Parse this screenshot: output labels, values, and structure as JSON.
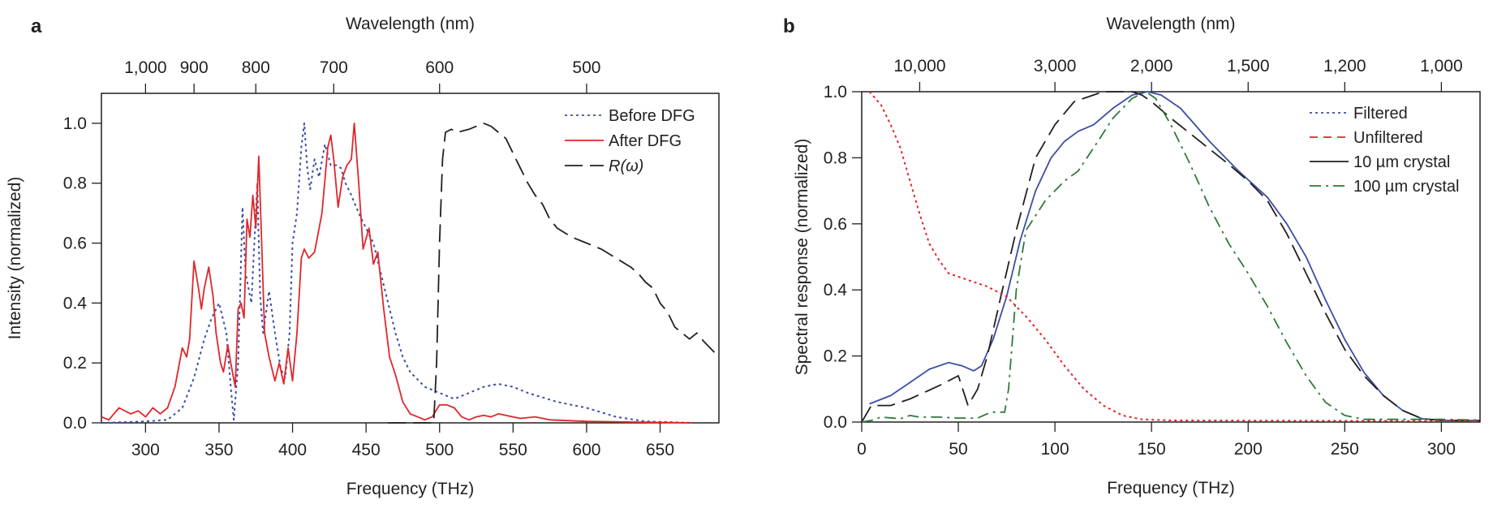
{
  "chart_data": [
    {
      "panel": "a",
      "type": "line",
      "xlabel": "Frequency (THz)",
      "ylabel": "Intensity (normalized)",
      "top_xlabel": "Wavelength (nm)",
      "xlim": [
        270,
        690
      ],
      "ylim": [
        0,
        1.1
      ],
      "xticks": [
        300,
        350,
        400,
        450,
        500,
        550,
        600,
        650
      ],
      "yticks": [
        "0.0",
        "0.2",
        "0.4",
        "0.6",
        "0.8",
        "1.0"
      ],
      "ytick_values": [
        0,
        0.2,
        0.4,
        0.6,
        0.8,
        1.0
      ],
      "top_ticks": [
        {
          "label": "1,000",
          "freq": 300
        },
        {
          "label": "900",
          "freq": 333
        },
        {
          "label": "800",
          "freq": 375
        },
        {
          "label": "700",
          "freq": 428
        },
        {
          "label": "600",
          "freq": 500
        },
        {
          "label": "500",
          "freq": 600
        }
      ],
      "legend_position": "top-right",
      "series": [
        {
          "name": "Before DFG",
          "color": "#3b4ea6",
          "style": "dotted",
          "x": [
            270,
            300,
            315,
            325,
            333,
            340,
            345,
            350,
            355,
            358,
            360,
            363,
            366,
            368,
            372,
            376,
            378,
            380,
            384,
            388,
            392,
            395,
            398,
            400,
            403,
            406,
            408,
            410,
            412,
            415,
            418,
            422,
            426,
            430,
            433,
            436,
            440,
            445,
            450,
            455,
            460,
            465,
            470,
            475,
            480,
            490,
            500,
            510,
            520,
            530,
            540,
            550,
            560,
            580,
            600,
            620,
            640,
            672
          ],
          "y": [
            0,
            0.005,
            0.01,
            0.05,
            0.15,
            0.28,
            0.35,
            0.4,
            0.3,
            0.12,
            0.01,
            0.2,
            0.72,
            0.5,
            0.4,
            0.8,
            0.42,
            0.3,
            0.44,
            0.3,
            0.18,
            0.15,
            0.3,
            0.6,
            0.7,
            0.92,
            1.0,
            0.85,
            0.78,
            0.88,
            0.82,
            0.93,
            0.86,
            0.86,
            0.85,
            0.8,
            0.76,
            0.7,
            0.65,
            0.6,
            0.5,
            0.4,
            0.3,
            0.22,
            0.17,
            0.12,
            0.1,
            0.08,
            0.1,
            0.12,
            0.13,
            0.12,
            0.1,
            0.07,
            0.05,
            0.02,
            0.005,
            0
          ]
        },
        {
          "name": "After DFG",
          "color": "#e0262a",
          "style": "solid",
          "x": [
            270,
            275,
            282,
            290,
            295,
            300,
            305,
            310,
            315,
            320,
            325,
            328,
            330,
            333,
            336,
            338,
            340,
            343,
            346,
            348,
            351,
            353,
            356,
            358,
            361,
            363,
            365,
            367,
            369,
            371,
            373,
            375,
            377,
            379,
            381,
            384,
            388,
            391,
            394,
            397,
            400,
            403,
            406,
            408,
            411,
            415,
            420,
            424,
            426,
            428,
            431,
            434,
            437,
            440,
            442,
            445,
            448,
            452,
            455,
            458,
            462,
            466,
            470,
            475,
            480,
            485,
            490,
            495,
            500,
            505,
            510,
            515,
            520,
            525,
            530,
            535,
            540,
            545,
            555,
            565,
            575,
            600,
            672
          ],
          "y": [
            0.02,
            0.01,
            0.05,
            0.03,
            0.04,
            0.02,
            0.05,
            0.03,
            0.05,
            0.12,
            0.25,
            0.22,
            0.28,
            0.54,
            0.45,
            0.38,
            0.45,
            0.52,
            0.42,
            0.3,
            0.2,
            0.17,
            0.26,
            0.2,
            0.12,
            0.38,
            0.4,
            0.35,
            0.68,
            0.62,
            0.76,
            0.65,
            0.89,
            0.6,
            0.3,
            0.22,
            0.14,
            0.2,
            0.13,
            0.25,
            0.14,
            0.3,
            0.55,
            0.58,
            0.55,
            0.57,
            0.7,
            0.92,
            0.96,
            0.88,
            0.72,
            0.82,
            0.86,
            0.88,
            1.0,
            0.8,
            0.58,
            0.65,
            0.53,
            0.57,
            0.38,
            0.22,
            0.16,
            0.07,
            0.03,
            0.02,
            0.01,
            0.02,
            0.06,
            0.06,
            0.05,
            0.02,
            0.01,
            0.02,
            0.025,
            0.02,
            0.03,
            0.025,
            0.015,
            0.02,
            0.01,
            0.005,
            0
          ]
        },
        {
          "name": "R(ω)",
          "color": "#231f20",
          "style": "longdash",
          "x": [
            465,
            496,
            498,
            500,
            502,
            504,
            508,
            512,
            520,
            525,
            530,
            535,
            540,
            545,
            550,
            555,
            560,
            565,
            570,
            575,
            580,
            590,
            600,
            610,
            620,
            630,
            635,
            640,
            645,
            650,
            655,
            660,
            665,
            670,
            675,
            680,
            690
          ],
          "y": [
            0,
            0,
            0.2,
            0.6,
            0.88,
            0.97,
            0.98,
            0.97,
            0.98,
            0.99,
            1.0,
            0.99,
            0.97,
            0.95,
            0.9,
            0.85,
            0.8,
            0.76,
            0.73,
            0.68,
            0.65,
            0.62,
            0.6,
            0.58,
            0.55,
            0.52,
            0.5,
            0.47,
            0.45,
            0.4,
            0.37,
            0.32,
            0.3,
            0.28,
            0.3,
            0.27,
            0.22
          ]
        }
      ]
    },
    {
      "panel": "b",
      "type": "line",
      "xlabel": "Frequency (THz)",
      "ylabel": "Spectral response (normalized)",
      "top_xlabel": "Wavelength (nm)",
      "xlim": [
        0,
        320
      ],
      "ylim": [
        0,
        1.0
      ],
      "xticks": [
        0,
        50,
        100,
        150,
        200,
        250,
        300
      ],
      "yticks": [
        "0.0",
        "0.2",
        "0.4",
        "0.6",
        "0.8",
        "1.0"
      ],
      "ytick_values": [
        0,
        0.2,
        0.4,
        0.6,
        0.8,
        1.0
      ],
      "top_ticks": [
        {
          "label": "10,000",
          "freq": 30
        },
        {
          "label": "3,000",
          "freq": 100
        },
        {
          "label": "2,000",
          "freq": 150
        },
        {
          "label": "1,500",
          "freq": 200
        },
        {
          "label": "1,200",
          "freq": 250
        },
        {
          "label": "1,000",
          "freq": 300
        }
      ],
      "legend_position": "top-right",
      "legend": [
        {
          "name": "Filtered",
          "color": "#3b4ea6",
          "style": "dotted"
        },
        {
          "name": "Unfiltered",
          "color": "#e0262a",
          "style": "dashed"
        },
        {
          "name": "10 µm crystal",
          "color": "#231f20",
          "style": "solid"
        },
        {
          "name": "100 µm crystal",
          "color": "#2e7a3a",
          "style": "dashdot"
        }
      ],
      "series": [
        {
          "name": "blue-solid",
          "color": "#3b4ea6",
          "style": "solid",
          "x": [
            4,
            15,
            25,
            35,
            45,
            52,
            58,
            62,
            68,
            75,
            82,
            90,
            98,
            105,
            112,
            120,
            130,
            140,
            148,
            155,
            165,
            180,
            195,
            210,
            220,
            230,
            240,
            250,
            260,
            270,
            280,
            290,
            300,
            320
          ],
          "y": [
            0.055,
            0.08,
            0.12,
            0.16,
            0.18,
            0.17,
            0.155,
            0.17,
            0.25,
            0.38,
            0.55,
            0.7,
            0.8,
            0.85,
            0.88,
            0.9,
            0.95,
            0.99,
            1.0,
            0.99,
            0.95,
            0.85,
            0.76,
            0.68,
            0.6,
            0.5,
            0.37,
            0.25,
            0.15,
            0.08,
            0.035,
            0.01,
            0.005,
            0.005
          ]
        },
        {
          "name": "black-dashed",
          "color": "#231f20",
          "style": "longdash",
          "x": [
            0,
            5,
            15,
            25,
            40,
            50,
            55,
            60,
            65,
            72,
            80,
            90,
            100,
            110,
            125,
            140,
            145,
            150,
            160,
            175,
            190,
            200,
            210,
            220,
            230,
            240,
            250,
            260,
            270,
            280,
            290,
            300,
            320
          ],
          "y": [
            0,
            0.05,
            0.05,
            0.07,
            0.11,
            0.14,
            0.05,
            0.1,
            0.2,
            0.38,
            0.58,
            0.8,
            0.9,
            0.97,
            1.0,
            1.0,
            0.99,
            0.97,
            0.92,
            0.85,
            0.78,
            0.73,
            0.67,
            0.57,
            0.45,
            0.33,
            0.22,
            0.14,
            0.08,
            0.035,
            0.01,
            0.005,
            0.004
          ]
        },
        {
          "name": "green-dashdot",
          "color": "#2e7a3a",
          "style": "dashdot",
          "x": [
            0,
            5,
            10,
            20,
            25,
            30,
            40,
            50,
            60,
            67,
            74,
            76,
            80,
            85,
            95,
            105,
            112,
            120,
            130,
            140,
            147,
            152,
            160,
            170,
            180,
            190,
            200,
            210,
            220,
            230,
            240,
            250,
            260,
            270,
            280,
            300,
            320
          ],
          "y": [
            0,
            0.005,
            0.015,
            0.01,
            0.02,
            0.015,
            0.015,
            0.012,
            0.012,
            0.03,
            0.03,
            0.1,
            0.4,
            0.58,
            0.67,
            0.73,
            0.76,
            0.83,
            0.92,
            0.98,
            1.0,
            0.98,
            0.9,
            0.78,
            0.65,
            0.54,
            0.45,
            0.35,
            0.24,
            0.14,
            0.06,
            0.02,
            0.008,
            0.008,
            0.008,
            0.008,
            0.006
          ]
        },
        {
          "name": "red-dotted",
          "color": "#e0262a",
          "style": "dotted",
          "x": [
            4,
            10,
            15,
            20,
            25,
            30,
            35,
            40,
            45,
            55,
            65,
            75,
            85,
            95,
            105,
            115,
            125,
            135,
            145,
            160,
            320
          ],
          "y": [
            1.0,
            0.96,
            0.9,
            0.83,
            0.73,
            0.63,
            0.54,
            0.49,
            0.45,
            0.43,
            0.41,
            0.38,
            0.32,
            0.25,
            0.17,
            0.1,
            0.05,
            0.02,
            0.008,
            0.005,
            0.003
          ]
        }
      ]
    }
  ],
  "panel_labels": [
    "a",
    "b"
  ]
}
